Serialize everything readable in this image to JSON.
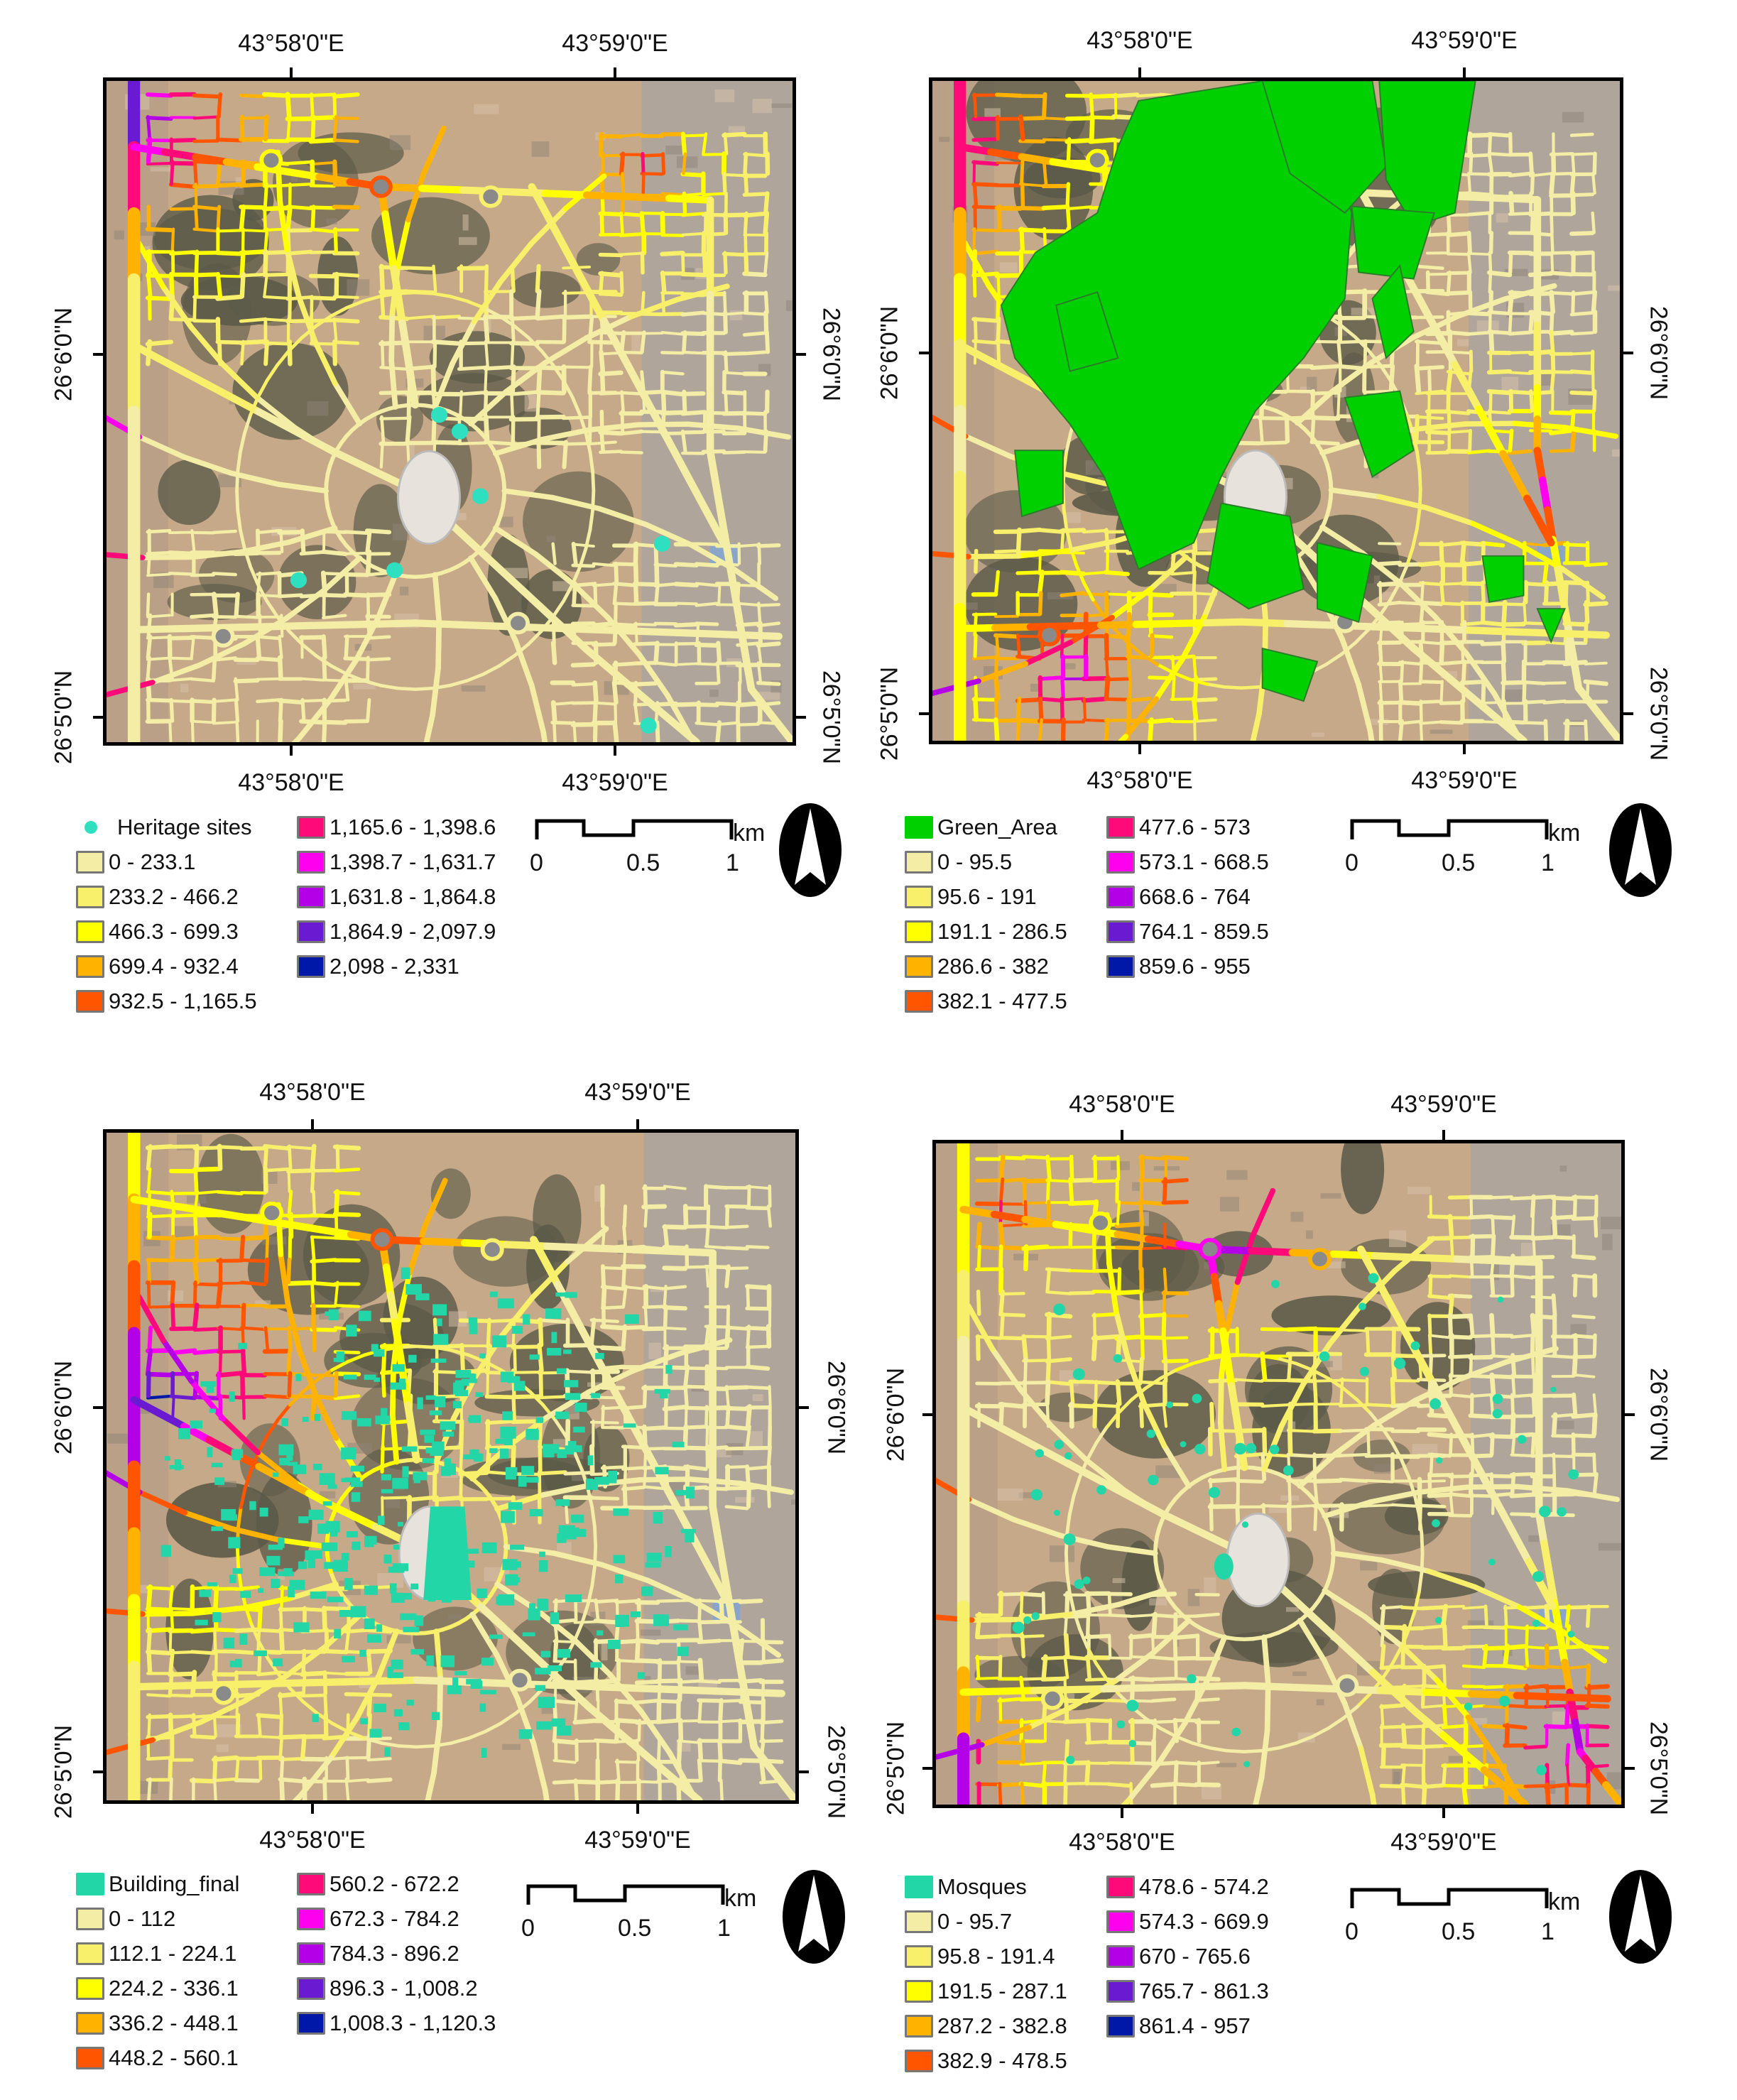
{
  "colors": {
    "background": "#ffffff",
    "satellite_base": "#c6a988",
    "vegetation": "#5b5a48",
    "urban": "#aaa49e",
    "feature_teal": "#22d6a8",
    "green_area": "#00d000"
  },
  "maps": [
    {
      "id": "heritage",
      "lon_labels": [
        "43°58'0\"E",
        "43°59'0\"E"
      ],
      "lat_labels": [
        "26°6'0\"N",
        "26°5'0\"N"
      ],
      "feature": {
        "label": "Heritage sites",
        "type": "point",
        "color": "#2fe0c0"
      },
      "classes": [
        {
          "label": "0 - 233.1",
          "color": "#f3eda6"
        },
        {
          "label": "233.2 - 466.2",
          "color": "#f8ef6a"
        },
        {
          "label": "466.3 - 699.3",
          "color": "#ffff00"
        },
        {
          "label": "699.4 - 932.4",
          "color": "#ffb300"
        },
        {
          "label": "932.5 - 1,165.5",
          "color": "#ff5500"
        },
        {
          "label": "1,165.6 - 1,398.6",
          "color": "#ff0a78"
        },
        {
          "label": "1,398.7 - 1,631.7",
          "color": "#ff00ee"
        },
        {
          "label": "1,631.8 - 1,864.8",
          "color": "#b400e6"
        },
        {
          "label": "1,864.9 - 2,097.9",
          "color": "#6a1bd1"
        },
        {
          "label": "2,098 - 2,331",
          "color": "#0018a8"
        }
      ],
      "scale": {
        "labels": [
          "0",
          "0.5",
          "1"
        ],
        "unit": "km"
      }
    },
    {
      "id": "green",
      "lon_labels": [
        "43°58'0\"E",
        "43°59'0\"E"
      ],
      "lat_labels": [
        "26°6'0\"N",
        "26°5'0\"N"
      ],
      "feature": {
        "label": "Green_Area",
        "type": "fill",
        "color": "#00d000"
      },
      "classes": [
        {
          "label": "0 - 95.5",
          "color": "#f3eda6"
        },
        {
          "label": "95.6 - 191",
          "color": "#f8ef6a"
        },
        {
          "label": "191.1 - 286.5",
          "color": "#ffff00"
        },
        {
          "label": "286.6 - 382",
          "color": "#ffb300"
        },
        {
          "label": "382.1 - 477.5",
          "color": "#ff5500"
        },
        {
          "label": "477.6 - 573",
          "color": "#ff0a78"
        },
        {
          "label": "573.1 - 668.5",
          "color": "#ff00ee"
        },
        {
          "label": "668.6 - 764",
          "color": "#b400e6"
        },
        {
          "label": "764.1 - 859.5",
          "color": "#6a1bd1"
        },
        {
          "label": "859.6 - 955",
          "color": "#0018a8"
        }
      ],
      "scale": {
        "labels": [
          "0",
          "0.5",
          "1"
        ],
        "unit": "km"
      }
    },
    {
      "id": "buildings",
      "lon_labels": [
        "43°58'0\"E",
        "43°59'0\"E"
      ],
      "lat_labels": [
        "26°6'0\"N",
        "26°5'0\"N"
      ],
      "feature": {
        "label": "Building_final",
        "type": "fill",
        "color": "#22d6a8"
      },
      "classes": [
        {
          "label": "0 - 112",
          "color": "#f3eda6"
        },
        {
          "label": "112.1 - 224.1",
          "color": "#f8ef6a"
        },
        {
          "label": "224.2 - 336.1",
          "color": "#ffff00"
        },
        {
          "label": "336.2 - 448.1",
          "color": "#ffb300"
        },
        {
          "label": "448.2 - 560.1",
          "color": "#ff5500"
        },
        {
          "label": "560.2 - 672.2",
          "color": "#ff0a78"
        },
        {
          "label": "672.3 - 784.2",
          "color": "#ff00ee"
        },
        {
          "label": "784.3 - 896.2",
          "color": "#b400e6"
        },
        {
          "label": "896.3 - 1,008.2",
          "color": "#6a1bd1"
        },
        {
          "label": "1,008.3 - 1,120.3",
          "color": "#0018a8"
        }
      ],
      "scale": {
        "labels": [
          "0",
          "0.5",
          "1"
        ],
        "unit": "km"
      }
    },
    {
      "id": "mosques",
      "lon_labels": [
        "43°58'0\"E",
        "43°59'0\"E"
      ],
      "lat_labels": [
        "26°6'0\"N",
        "26°5'0\"N"
      ],
      "feature": {
        "label": "Mosques",
        "type": "fill",
        "color": "#22d6a8"
      },
      "classes": [
        {
          "label": "0 - 95.7",
          "color": "#f3eda6"
        },
        {
          "label": "95.8 - 191.4",
          "color": "#f8ef6a"
        },
        {
          "label": "191.5 - 287.1",
          "color": "#ffff00"
        },
        {
          "label": "287.2 - 382.8",
          "color": "#ffb300"
        },
        {
          "label": "382.9 - 478.5",
          "color": "#ff5500"
        },
        {
          "label": "478.6 - 574.2",
          "color": "#ff0a78"
        },
        {
          "label": "574.3 - 669.9",
          "color": "#ff00ee"
        },
        {
          "label": "670 - 765.6",
          "color": "#b400e6"
        },
        {
          "label": "765.7 - 861.3",
          "color": "#6a1bd1"
        },
        {
          "label": "861.4 - 957",
          "color": "#0018a8"
        }
      ],
      "scale": {
        "labels": [
          "0",
          "0.5",
          "1"
        ],
        "unit": "km"
      }
    }
  ]
}
